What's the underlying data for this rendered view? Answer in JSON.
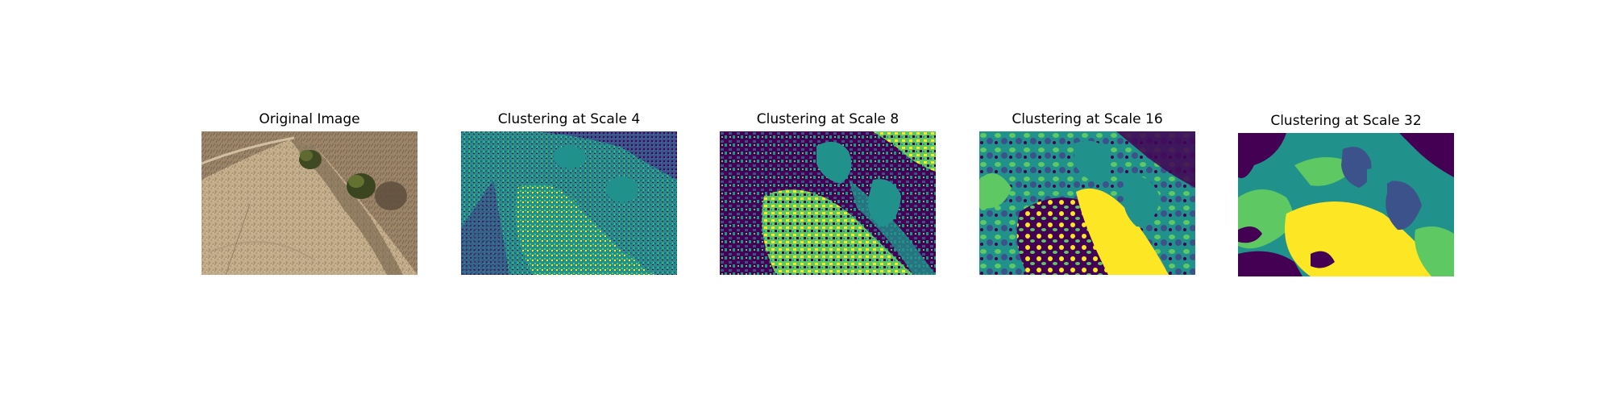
{
  "panels": [
    {
      "title": "Original Image"
    },
    {
      "title": "Clustering at Scale 4"
    },
    {
      "title": "Clustering at Scale 8"
    },
    {
      "title": "Clustering at Scale 16"
    },
    {
      "title": "Clustering at Scale 32"
    }
  ],
  "colors": {
    "cluster_purple": "#440154",
    "cluster_blue": "#3b528b",
    "cluster_teal": "#21918c",
    "cluster_green": "#5ec962",
    "cluster_yellow": "#fde725",
    "photo_ground": "#b9a283",
    "photo_shadow": "#4a3f33",
    "photo_shrub": "#4f5a2c"
  }
}
